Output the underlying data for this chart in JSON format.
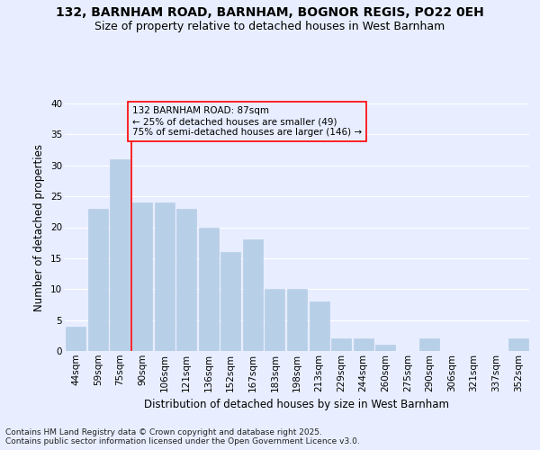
{
  "title1": "132, BARNHAM ROAD, BARNHAM, BOGNOR REGIS, PO22 0EH",
  "title2": "Size of property relative to detached houses in West Barnham",
  "xlabel": "Distribution of detached houses by size in West Barnham",
  "ylabel": "Number of detached properties",
  "categories": [
    "44sqm",
    "59sqm",
    "75sqm",
    "90sqm",
    "106sqm",
    "121sqm",
    "136sqm",
    "152sqm",
    "167sqm",
    "183sqm",
    "198sqm",
    "213sqm",
    "229sqm",
    "244sqm",
    "260sqm",
    "275sqm",
    "290sqm",
    "306sqm",
    "321sqm",
    "337sqm",
    "352sqm"
  ],
  "values": [
    4,
    23,
    31,
    24,
    24,
    23,
    20,
    16,
    18,
    10,
    10,
    8,
    2,
    2,
    1,
    0,
    2,
    0,
    0,
    0,
    2
  ],
  "bar_color": "#b8cfe8",
  "bar_edgecolor": "#b8cfe8",
  "redline_x": 2.5,
  "annotation_text": "132 BARNHAM ROAD: 87sqm\n← 25% of detached houses are smaller (49)\n75% of semi-detached houses are larger (146) →",
  "annotation_box_edgecolor": "red",
  "redline_color": "red",
  "ylim": [
    0,
    40
  ],
  "yticks": [
    0,
    5,
    10,
    15,
    20,
    25,
    30,
    35,
    40
  ],
  "background_color": "#e8eeff",
  "grid_color": "#ffffff",
  "footer1": "Contains HM Land Registry data © Crown copyright and database right 2025.",
  "footer2": "Contains public sector information licensed under the Open Government Licence v3.0.",
  "title_fontsize": 10,
  "subtitle_fontsize": 9,
  "axis_label_fontsize": 8.5,
  "tick_fontsize": 7.5,
  "annotation_fontsize": 7.5,
  "footer_fontsize": 6.5
}
